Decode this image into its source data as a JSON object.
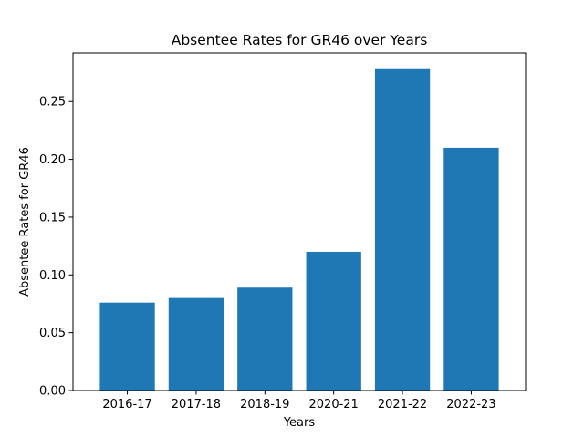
{
  "chart_data": {
    "type": "bar",
    "title": "Absentee Rates for GR46 over Years",
    "xlabel": "Years",
    "ylabel": "Absentee Rates for GR46",
    "categories": [
      "2016-17",
      "2017-18",
      "2018-19",
      "2020-21",
      "2021-22",
      "2022-23"
    ],
    "values": [
      0.076,
      0.08,
      0.089,
      0.12,
      0.278,
      0.21
    ],
    "ylim": [
      0,
      0.292
    ],
    "yticks": [
      0.0,
      0.05,
      0.1,
      0.15,
      0.2,
      0.25
    ],
    "ytick_labels": [
      "0.00",
      "0.05",
      "0.10",
      "0.15",
      "0.20",
      "0.25"
    ],
    "grid": false,
    "legend": "none",
    "bar_color": "#1f77b4"
  }
}
